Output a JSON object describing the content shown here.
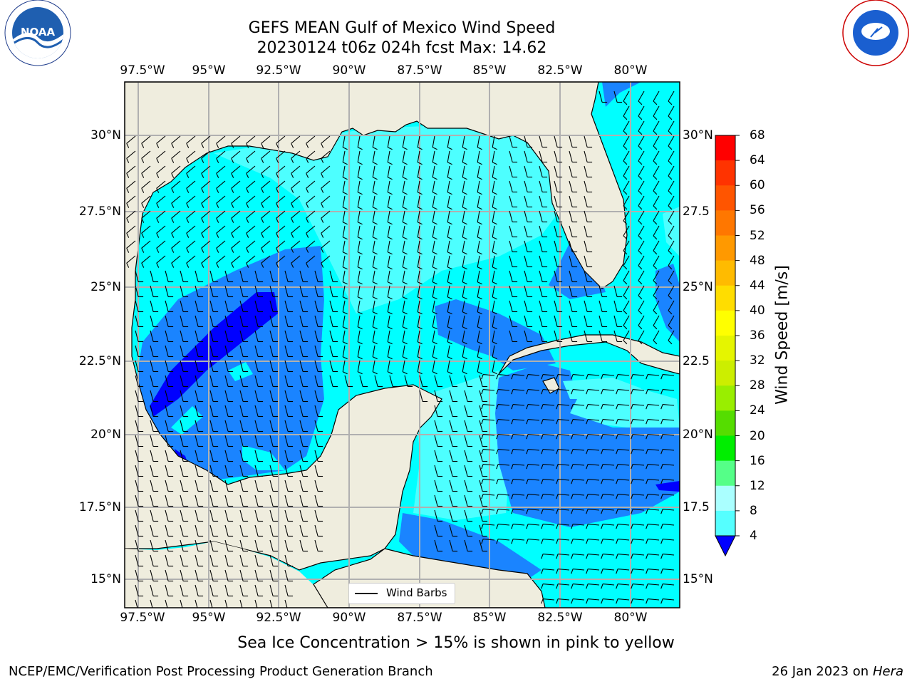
{
  "header": {
    "title_line1": "GEFS MEAN Gulf of Mexico Wind Speed",
    "title_line2": "20230124 t06z 024h fcst   Max: 14.62"
  },
  "logos": {
    "left": "NOAA",
    "left_ring_text": "NATIONAL OCEANIC AND ATMOSPHERIC ADMINISTRATION · U.S. DEPARTMENT OF COMMERCE",
    "right_ring_text": "NATIONAL WEATHER SERVICE"
  },
  "map": {
    "lon_ticks": [
      "97.5°W",
      "95°W",
      "92.5°W",
      "90°W",
      "87.5°W",
      "85°W",
      "82.5°W",
      "80°W"
    ],
    "lat_ticks_left": [
      "30°N",
      "27.5°N",
      "25°N",
      "22.5°N",
      "20°N",
      "17.5°N",
      "15°N"
    ],
    "lat_ticks_right": [
      "30°N",
      "27.5",
      "25°N",
      "22.5",
      "20°N",
      "17.5",
      "15°N"
    ],
    "legend_label": "Wind Barbs",
    "colors": {
      "land": "#efedde",
      "grid": "#b0b0b0",
      "ws_4_8": "#1a84ff",
      "ws_8_12": "#00ffff",
      "ws_12_16": "#4dffff",
      "ws_lt_4": "#0000ff"
    }
  },
  "colorbar": {
    "label": "Wind Speed [m/s]",
    "ticks": [
      "68",
      "64",
      "60",
      "56",
      "52",
      "48",
      "44",
      "40",
      "36",
      "32",
      "28",
      "24",
      "20",
      "16",
      "12",
      "8",
      "4"
    ],
    "colors": [
      "#ff0000",
      "#ff3300",
      "#ff5500",
      "#ff7700",
      "#ff9900",
      "#ffbb00",
      "#ffdd00",
      "#ffff00",
      "#e5f500",
      "#ccee00",
      "#99ee00",
      "#55dd00",
      "#00ee00",
      "#55ff88",
      "#aaffff",
      "#55ffff",
      "#00ffff",
      "#1a84ff",
      "#0000ff"
    ]
  },
  "footer": {
    "note": "Sea Ice Concentration > 15% is shown in pink to yellow",
    "credit": "NCEP/EMC/Verification Post Processing Product Generation Branch",
    "date_prefix": "26 Jan 2023 on",
    "machine": "Hera"
  }
}
